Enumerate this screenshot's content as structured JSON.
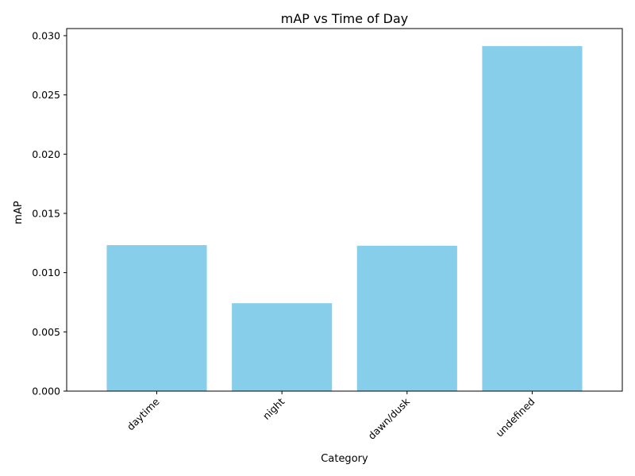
{
  "chart_data": {
    "type": "bar",
    "title": "mAP vs Time of Day",
    "xlabel": "Category",
    "ylabel": "mAP",
    "categories": [
      "daytime",
      "night",
      "dawn/dusk",
      "undefined"
    ],
    "values": [
      0.01232,
      0.00742,
      0.01227,
      0.02912
    ],
    "ylim": [
      0,
      0.0306
    ],
    "yticks": [
      "0.000",
      "0.005",
      "0.010",
      "0.015",
      "0.020",
      "0.025",
      "0.030"
    ],
    "ytick_values": [
      0,
      0.005,
      0.01,
      0.015,
      0.02,
      0.025,
      0.03
    ],
    "xtick_rotation": 45,
    "grid": false,
    "legend": "none",
    "bar_color": "#87ceeb"
  }
}
